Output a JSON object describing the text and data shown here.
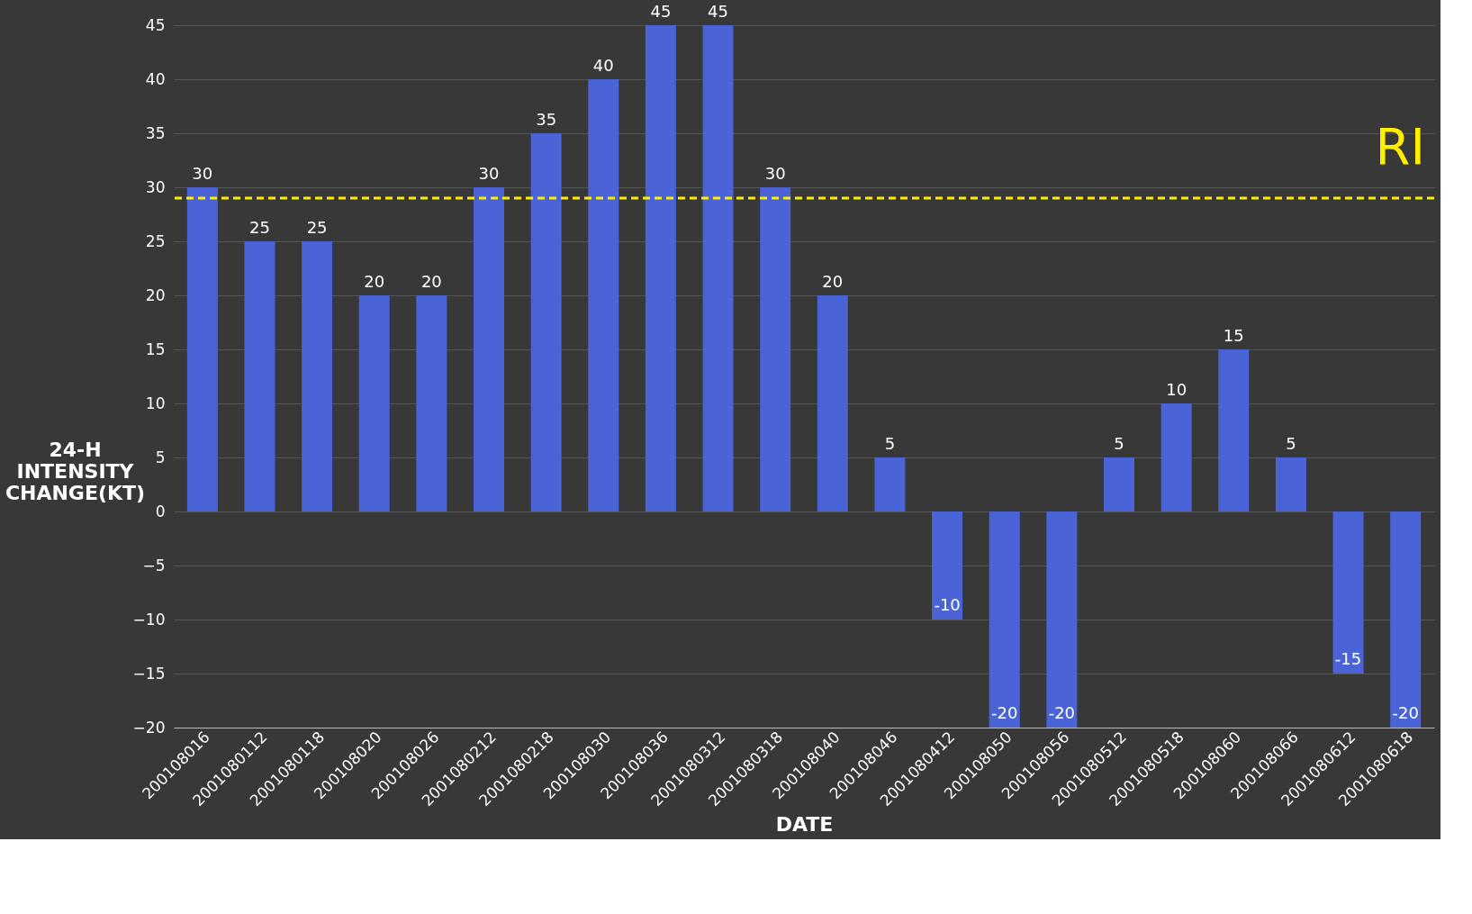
{
  "chart_data": {
    "type": "bar",
    "xlabel": "DATE",
    "ylabel": "24-H INTENSITY CHANGE(KT)",
    "categories": [
      "200108016",
      "2001080112",
      "2001080118",
      "200108020",
      "200108026",
      "2001080212",
      "2001080218",
      "200108030",
      "200108036",
      "2001080312",
      "2001080318",
      "200108040",
      "200108046",
      "2001080412",
      "200108050",
      "200108056",
      "2001080512",
      "2001080518",
      "200108060",
      "200108066",
      "2001080612",
      "2001080618"
    ],
    "values": [
      30,
      25,
      25,
      20,
      20,
      30,
      35,
      40,
      45,
      45,
      30,
      20,
      5,
      -10,
      -20,
      -20,
      5,
      10,
      15,
      5,
      -15,
      -20
    ],
    "color": "#4a63d6",
    "ylim": [
      -20,
      45
    ],
    "yticks": [
      -20,
      -15,
      -10,
      -5,
      0,
      5,
      10,
      15,
      20,
      25,
      30,
      35,
      40,
      45
    ],
    "grid": "y",
    "data_labels": true,
    "ref_lines": [
      {
        "axis": "y",
        "value": 29,
        "label": "RI",
        "color": "#ffee00",
        "line_style": "dashed"
      }
    ]
  }
}
